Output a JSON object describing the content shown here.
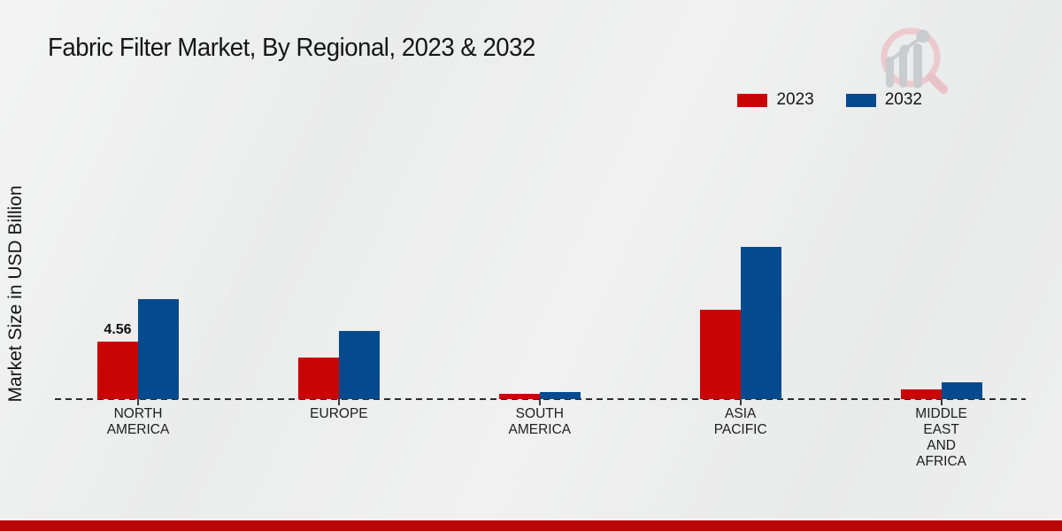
{
  "title": "Fabric Filter Market, By Regional, 2023 & 2032",
  "ylabel": "Market Size in USD Billion",
  "legend": {
    "items": [
      {
        "label": "2023",
        "color": "#c90404"
      },
      {
        "label": "2032",
        "color": "#044a8d"
      }
    ]
  },
  "logo": {
    "name": "market-research-magnifier-logo",
    "ring_color": "#ecc5c8",
    "bars_color": "#c6c7cb"
  },
  "footer": {
    "bar_color": "#b80606"
  },
  "chart_data": {
    "type": "bar",
    "title": "Fabric Filter Market, By Regional, 2023 & 2032",
    "xlabel": "",
    "ylabel": "Market Size in USD Billion",
    "categories": [
      "NORTH AMERICA",
      "EUROPE",
      "SOUTH AMERICA",
      "ASIA PACIFIC",
      "MIDDLE EAST AND AFRICA"
    ],
    "category_label_lines": [
      [
        "NORTH",
        "AMERICA"
      ],
      [
        "EUROPE"
      ],
      [
        "SOUTH",
        "AMERICA"
      ],
      [
        "ASIA",
        "PACIFIC"
      ],
      [
        "MIDDLE",
        "EAST",
        "AND",
        "AFRICA"
      ]
    ],
    "series": [
      {
        "name": "2023",
        "color": "#c90404",
        "values": [
          4.56,
          3.3,
          0.4,
          7.1,
          0.77
        ]
      },
      {
        "name": "2032",
        "color": "#044a8d",
        "values": [
          7.9,
          5.4,
          0.56,
          12.1,
          1.33
        ]
      }
    ],
    "data_labels": [
      {
        "series": 0,
        "category": 0,
        "text": "4.56"
      }
    ],
    "ylim": [
      0,
      13
    ],
    "grid": false,
    "legend_position": "top-right",
    "baseline_style": "dashed"
  }
}
